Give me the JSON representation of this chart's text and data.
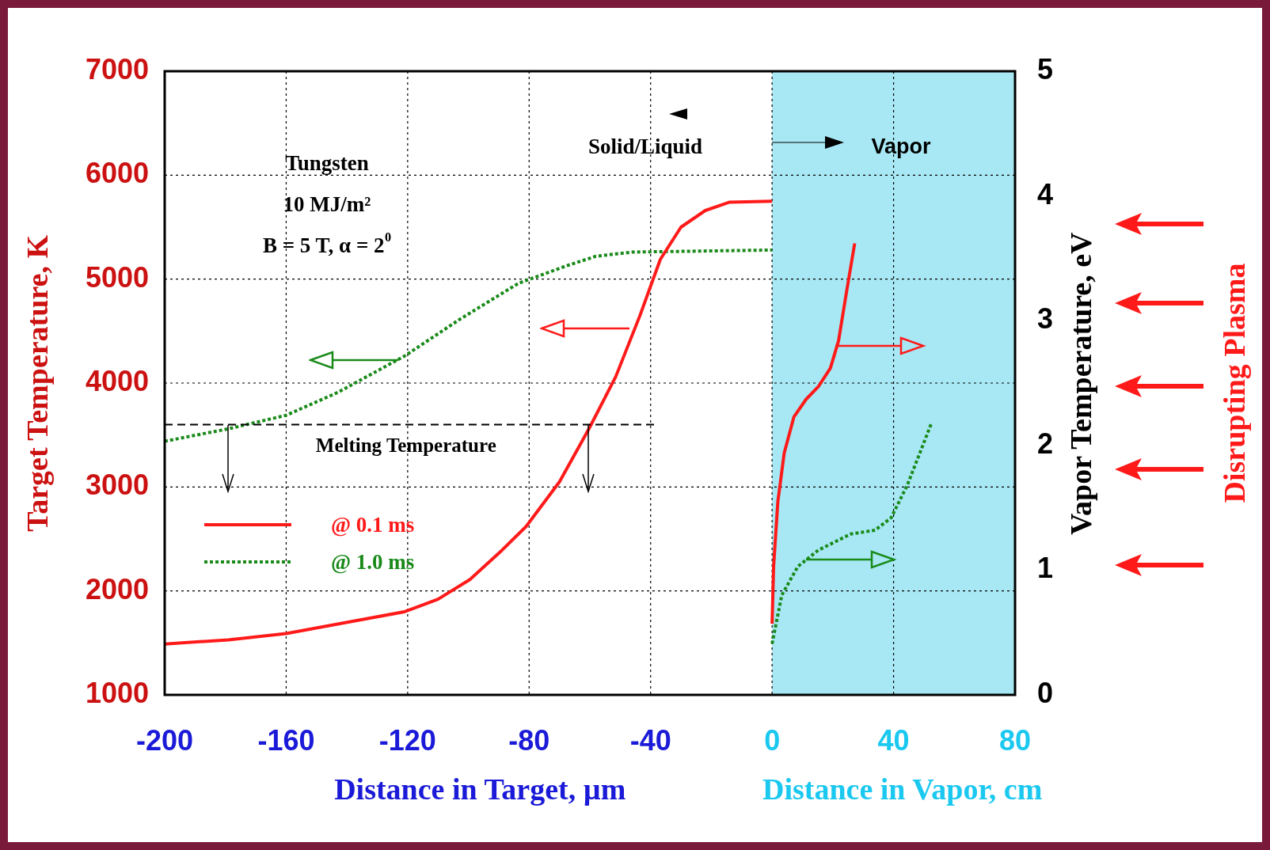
{
  "chart_data": {
    "type": "line",
    "xlabel": "Distance in Target, µm",
    "ylabel": "Target Temperature, K",
    "y2label": "Vapor Temperature, eV",
    "xlim": [
      -200,
      80
    ],
    "xticks": [
      -200,
      -160,
      -120,
      -80,
      -40,
      0,
      40,
      80
    ],
    "ylim": [
      1000,
      7000
    ],
    "yticks": [
      1000,
      2000,
      3000,
      4000,
      5000,
      6000,
      7000
    ],
    "y2lim": [
      0,
      5
    ],
    "y2ticks": [
      0,
      1,
      2,
      3,
      4,
      5
    ],
    "grid": true,
    "legend": "bottom left",
    "marker": "none",
    "series": [
      {
        "name": "@ 0.1 ms",
        "color": "#ff1a1a",
        "line_style": "solid",
        "x": [
          -200,
          -179,
          -160,
          -139.5,
          -121,
          -110,
          -99.5,
          -89,
          -81,
          -70,
          -60.3,
          -51.5,
          -43.5,
          -36.8,
          -30,
          -22,
          -14,
          0
        ],
        "values": [
          1490,
          1530,
          1590,
          1700,
          1800,
          1920,
          2110,
          2390,
          2620,
          3050,
          3560,
          4060,
          4650,
          5190,
          5500,
          5660,
          5740,
          5750
        ]
      },
      {
        "name": "@ 1.0 ms",
        "color": "#1a8a1a",
        "line_style": "dotted",
        "x": [
          -200,
          -179,
          -160,
          -143,
          -121,
          -103,
          -83.5,
          -67.5,
          -58,
          -46,
          0
        ],
        "values": [
          3440,
          3560,
          3690,
          3910,
          4260,
          4610,
          4960,
          5130,
          5220,
          5260,
          5280
        ]
      },
      {
        "color": "#ff1a1a",
        "line_style": "solid",
        "axis": "y2",
        "x": [
          0,
          0.5,
          1.9,
          4,
          7.2,
          11.2,
          15.2,
          19.2,
          21.9,
          24.5,
          27.2
        ],
        "values": [
          0.57,
          1.03,
          1.55,
          1.94,
          2.23,
          2.37,
          2.47,
          2.62,
          2.84,
          3.23,
          3.62
        ]
      },
      {
        "color": "#1a8a1a",
        "line_style": "dotted",
        "axis": "y2",
        "x": [
          0,
          3.2,
          8.5,
          15.2,
          25.9,
          33.9,
          39.2,
          44.5,
          52.5
        ],
        "values": [
          0.41,
          0.8,
          1.03,
          1.16,
          1.29,
          1.32,
          1.42,
          1.68,
          2.18
        ]
      }
    ],
    "bands": [
      {
        "axis": "x",
        "from": 0,
        "to": 80,
        "color": "#a8e8f4"
      }
    ],
    "ref_lines": [
      {
        "axis": "y",
        "value": 3600,
        "label": "Melting Temperature",
        "line_style": "dashed",
        "color": "#000000"
      }
    ],
    "annotations": [
      "Tungsten",
      "10 MJ/m²",
      "B = 5 T, α = 2$^{0}$",
      "Solid/Liquid",
      "Vapor",
      "Distance in Vapor, cm",
      "Disrupting Plasma"
    ]
  }
}
